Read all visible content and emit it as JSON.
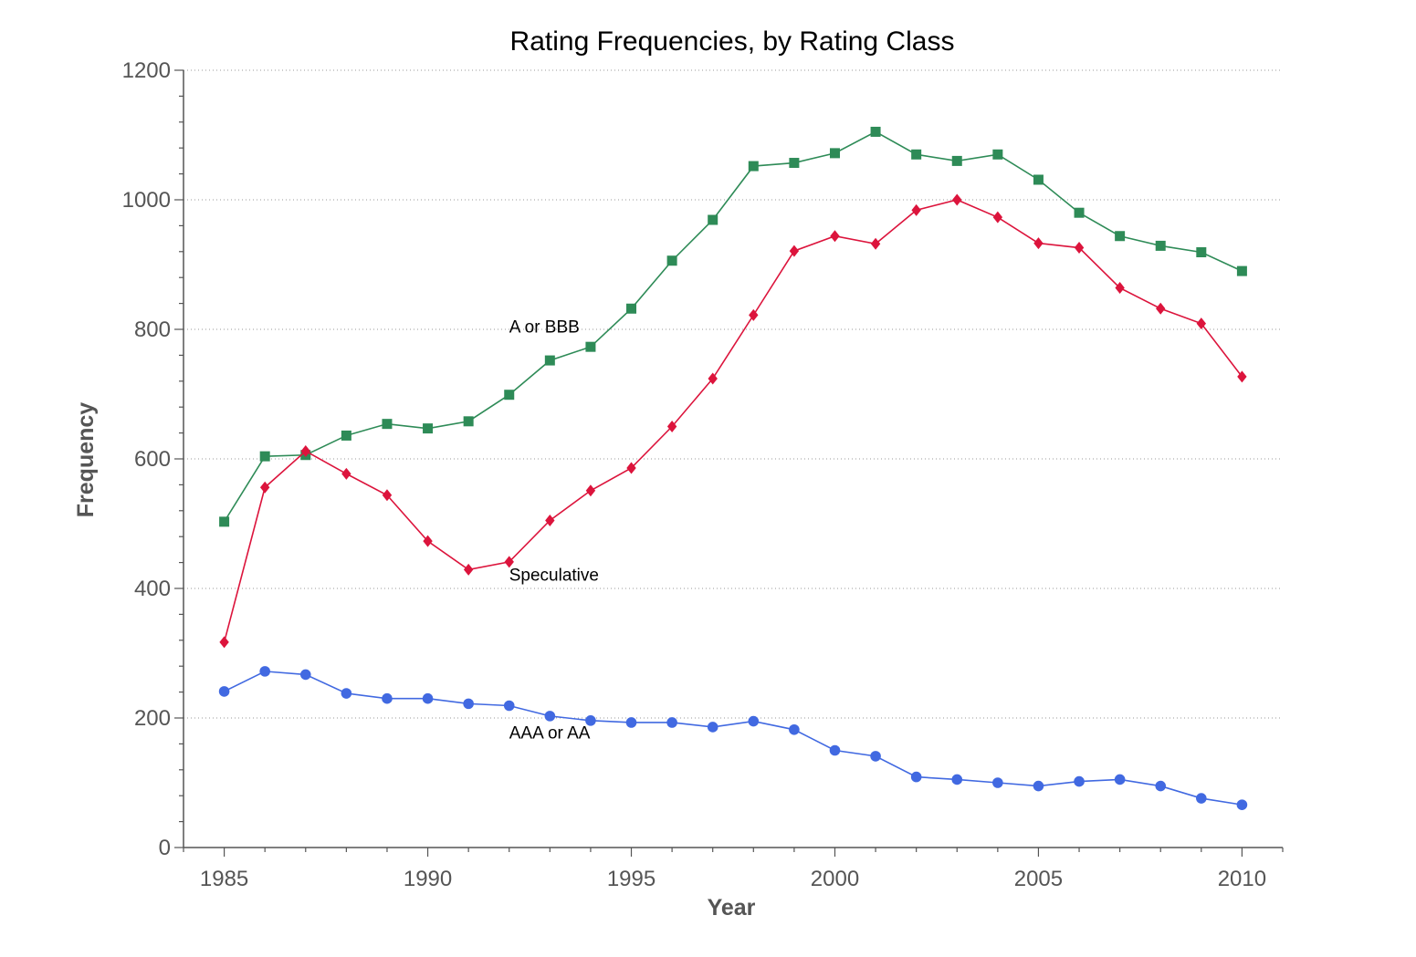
{
  "chart_data": {
    "type": "line",
    "title": "Rating Frequencies, by Rating Class",
    "xlabel": "Year",
    "ylabel": "Frequency",
    "xlim": [
      1984,
      2011
    ],
    "ylim": [
      0,
      1200
    ],
    "x_ticks": [
      1985,
      1990,
      1995,
      2000,
      2005,
      2010
    ],
    "y_ticks": [
      0,
      200,
      400,
      600,
      800,
      1000,
      1200
    ],
    "grid": "horizontal-dotted",
    "legend": "none",
    "x": [
      1985,
      1986,
      1987,
      1988,
      1989,
      1990,
      1991,
      1992,
      1993,
      1994,
      1995,
      1996,
      1997,
      1998,
      1999,
      2000,
      2001,
      2002,
      2003,
      2004,
      2005,
      2006,
      2007,
      2008,
      2009,
      2010
    ],
    "series": [
      {
        "name": "A or BBB",
        "color": "#2e8b57",
        "marker": "square",
        "values": [
          503,
          604,
          606,
          636,
          654,
          647,
          658,
          699,
          752,
          773,
          832,
          906,
          969,
          1052,
          1057,
          1072,
          1105,
          1070,
          1060,
          1070,
          1031,
          980,
          944,
          929,
          919,
          890
        ]
      },
      {
        "name": "Speculative",
        "color": "#dc143c",
        "marker": "diamond",
        "values": [
          317,
          556,
          612,
          577,
          544,
          473,
          429,
          441,
          505,
          551,
          586,
          650,
          724,
          822,
          921,
          944,
          932,
          984,
          1000,
          973,
          933,
          926,
          864,
          832,
          809,
          727
        ]
      },
      {
        "name": "AAA or AA",
        "color": "#4169e1",
        "marker": "circle",
        "values": [
          241,
          272,
          267,
          238,
          230,
          230,
          222,
          219,
          203,
          196,
          193,
          193,
          186,
          195,
          182,
          150,
          141,
          109,
          105,
          100,
          95,
          102,
          105,
          95,
          76,
          66
        ]
      }
    ],
    "annotations": [
      {
        "text": "A or BBB",
        "x": 1992,
        "y": 795,
        "series": "A or BBB"
      },
      {
        "text": "Speculative",
        "x": 1992,
        "y": 412,
        "series": "Speculative"
      },
      {
        "text": "AAA or AA",
        "x": 1992,
        "y": 168,
        "series": "AAA or AA"
      }
    ]
  }
}
